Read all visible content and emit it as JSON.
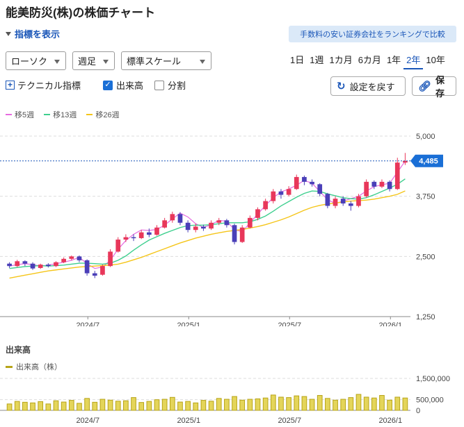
{
  "header": {
    "title": "能美防災(株)の株価チャート"
  },
  "indicator_toggle": {
    "label": "指標を表示"
  },
  "promo": {
    "label": "手数料の安い証券会社をランキングで比較"
  },
  "controls": {
    "chart_type": "ローソク",
    "interval": "週足",
    "scale": "標準スケール",
    "periods": [
      "1日",
      "1週",
      "1カ月",
      "6カ月",
      "1年",
      "2年",
      "10年"
    ],
    "active_period": "2年",
    "technical_label": "テクニカル指標",
    "volume_label": "出来高",
    "volume_checked": true,
    "split_label": "分割",
    "split_checked": false,
    "reset_label": "設定を戻す",
    "save_label": "保存"
  },
  "legend": {
    "ma5": "移5週",
    "ma13": "移13週",
    "ma26": "移26週"
  },
  "colors": {
    "up": "#e8375a",
    "down": "#4a3fb8",
    "ma5": "#e66be0",
    "ma13": "#3ecf8e",
    "ma26": "#f5c518",
    "volume": "#b7a418",
    "accent": "#1a56b8"
  },
  "volume_section": {
    "title": "出来高",
    "legend": "出来高（株）"
  },
  "chart_data": [
    {
      "type": "candlestick",
      "x_ticks": [
        "2024/7",
        "2025/1",
        "2025/7",
        "2026/1"
      ],
      "y_ticks": [
        "5,000",
        "3,750",
        "2,500",
        "1,250"
      ],
      "ylim": [
        1250,
        5000
      ],
      "current_price": 4485,
      "current_price_label": "4,485",
      "series": [
        {
          "name": "移5週",
          "values": [
            2300,
            2330,
            2350,
            2330,
            2300,
            2320,
            2350,
            2380,
            2420,
            2480,
            2350,
            2250,
            2280,
            2420,
            2650,
            2830,
            2960,
            3050,
            3040,
            3060,
            3150,
            3280,
            3400,
            3320,
            3180,
            3100,
            3160,
            3250,
            3230,
            3060,
            3010,
            3200,
            3380,
            3560,
            3720,
            3840,
            3900,
            3980,
            4080,
            4020,
            3850,
            3680,
            3600,
            3650,
            3700,
            3750,
            3860,
            3950,
            3990,
            4020,
            4250,
            4480
          ]
        },
        {
          "name": "移13週",
          "values": [
            2250,
            2270,
            2290,
            2300,
            2310,
            2300,
            2310,
            2320,
            2340,
            2360,
            2360,
            2350,
            2340,
            2360,
            2420,
            2510,
            2630,
            2740,
            2840,
            2910,
            2980,
            3040,
            3100,
            3140,
            3150,
            3150,
            3160,
            3180,
            3200,
            3200,
            3200,
            3220,
            3270,
            3340,
            3440,
            3550,
            3640,
            3730,
            3810,
            3860,
            3850,
            3800,
            3760,
            3720,
            3700,
            3690,
            3720,
            3780,
            3850,
            3920,
            4000,
            4110
          ]
        },
        {
          "name": "移26週",
          "values": [
            2050,
            2080,
            2110,
            2140,
            2170,
            2200,
            2220,
            2240,
            2260,
            2280,
            2290,
            2300,
            2310,
            2320,
            2340,
            2380,
            2430,
            2480,
            2540,
            2600,
            2660,
            2720,
            2780,
            2830,
            2880,
            2920,
            2960,
            2990,
            3020,
            3040,
            3060,
            3090,
            3120,
            3160,
            3210,
            3260,
            3320,
            3390,
            3460,
            3520,
            3560,
            3590,
            3610,
            3630,
            3650,
            3660,
            3670,
            3690,
            3720,
            3750,
            3790,
            3860
          ]
        }
      ],
      "candles": [
        {
          "o": 2350,
          "c": 2300,
          "h": 2380,
          "l": 2260
        },
        {
          "o": 2300,
          "c": 2400,
          "h": 2430,
          "l": 2280
        },
        {
          "o": 2400,
          "c": 2350,
          "h": 2420,
          "l": 2300
        },
        {
          "o": 2350,
          "c": 2250,
          "h": 2380,
          "l": 2220
        },
        {
          "o": 2260,
          "c": 2330,
          "h": 2350,
          "l": 2240
        },
        {
          "o": 2330,
          "c": 2300,
          "h": 2360,
          "l": 2270
        },
        {
          "o": 2300,
          "c": 2380,
          "h": 2400,
          "l": 2280
        },
        {
          "o": 2380,
          "c": 2450,
          "h": 2480,
          "l": 2360
        },
        {
          "o": 2450,
          "c": 2500,
          "h": 2520,
          "l": 2420
        },
        {
          "o": 2500,
          "c": 2420,
          "h": 2520,
          "l": 2380
        },
        {
          "o": 2420,
          "c": 2150,
          "h": 2440,
          "l": 2100
        },
        {
          "o": 2150,
          "c": 2100,
          "h": 2200,
          "l": 2050
        },
        {
          "o": 2120,
          "c": 2300,
          "h": 2330,
          "l": 2100
        },
        {
          "o": 2300,
          "c": 2600,
          "h": 2650,
          "l": 2280
        },
        {
          "o": 2600,
          "c": 2850,
          "h": 2900,
          "l": 2580
        },
        {
          "o": 2850,
          "c": 2900,
          "h": 2960,
          "l": 2800
        },
        {
          "o": 2900,
          "c": 2880,
          "h": 2960,
          "l": 2820
        },
        {
          "o": 2880,
          "c": 3000,
          "h": 3050,
          "l": 2860
        },
        {
          "o": 3000,
          "c": 2950,
          "h": 3080,
          "l": 2900
        },
        {
          "o": 2950,
          "c": 3100,
          "h": 3150,
          "l": 2930
        },
        {
          "o": 3100,
          "c": 3250,
          "h": 3300,
          "l": 3080
        },
        {
          "o": 3250,
          "c": 3380,
          "h": 3430,
          "l": 3200
        },
        {
          "o": 3380,
          "c": 3200,
          "h": 3420,
          "l": 3150
        },
        {
          "o": 3200,
          "c": 3050,
          "h": 3250,
          "l": 3000
        },
        {
          "o": 3050,
          "c": 3120,
          "h": 3180,
          "l": 3000
        },
        {
          "o": 3120,
          "c": 3080,
          "h": 3160,
          "l": 3030
        },
        {
          "o": 3080,
          "c": 3200,
          "h": 3250,
          "l": 3050
        },
        {
          "o": 3200,
          "c": 3250,
          "h": 3300,
          "l": 3150
        },
        {
          "o": 3250,
          "c": 3150,
          "h": 3280,
          "l": 3100
        },
        {
          "o": 3150,
          "c": 2800,
          "h": 3180,
          "l": 2750
        },
        {
          "o": 2800,
          "c": 3100,
          "h": 3150,
          "l": 2780
        },
        {
          "o": 3100,
          "c": 3300,
          "h": 3350,
          "l": 3080
        },
        {
          "o": 3300,
          "c": 3480,
          "h": 3520,
          "l": 3250
        },
        {
          "o": 3480,
          "c": 3650,
          "h": 3700,
          "l": 3450
        },
        {
          "o": 3650,
          "c": 3850,
          "h": 3900,
          "l": 3600
        },
        {
          "o": 3850,
          "c": 3780,
          "h": 3900,
          "l": 3700
        },
        {
          "o": 3780,
          "c": 3900,
          "h": 3960,
          "l": 3750
        },
        {
          "o": 3900,
          "c": 4150,
          "h": 4200,
          "l": 3880
        },
        {
          "o": 4150,
          "c": 4050,
          "h": 4180,
          "l": 3980
        },
        {
          "o": 4050,
          "c": 4000,
          "h": 4100,
          "l": 3950
        },
        {
          "o": 4000,
          "c": 3800,
          "h": 4020,
          "l": 3750
        },
        {
          "o": 3800,
          "c": 3550,
          "h": 3820,
          "l": 3500
        },
        {
          "o": 3550,
          "c": 3700,
          "h": 3750,
          "l": 3500
        },
        {
          "o": 3700,
          "c": 3600,
          "h": 3750,
          "l": 3550
        },
        {
          "o": 3600,
          "c": 3550,
          "h": 3650,
          "l": 3450
        },
        {
          "o": 3550,
          "c": 3750,
          "h": 3800,
          "l": 3520
        },
        {
          "o": 3750,
          "c": 4050,
          "h": 4100,
          "l": 3720
        },
        {
          "o": 4050,
          "c": 3950,
          "h": 4080,
          "l": 3900
        },
        {
          "o": 3950,
          "c": 4050,
          "h": 4100,
          "l": 3920
        },
        {
          "o": 4050,
          "c": 3900,
          "h": 4080,
          "l": 3850
        },
        {
          "o": 3900,
          "c": 4450,
          "h": 4550,
          "l": 3880
        },
        {
          "o": 4450,
          "c": 4485,
          "h": 4650,
          "l": 4400
        }
      ]
    },
    {
      "type": "bar",
      "x_ticks": [
        "2024/7",
        "2025/1",
        "2025/7",
        "2026/1"
      ],
      "y_ticks": [
        "1,500,000",
        "500,000",
        "0"
      ],
      "ylim": [
        0,
        1500000
      ],
      "values": [
        300000,
        420000,
        380000,
        350000,
        410000,
        300000,
        450000,
        390000,
        470000,
        330000,
        560000,
        380000,
        520000,
        480000,
        430000,
        450000,
        600000,
        370000,
        420000,
        500000,
        520000,
        610000,
        390000,
        420000,
        350000,
        470000,
        430000,
        560000,
        520000,
        650000,
        480000,
        520000,
        540000,
        580000,
        720000,
        620000,
        600000,
        680000,
        650000,
        520000,
        700000,
        560000,
        480000,
        520000,
        600000,
        750000,
        620000,
        580000,
        700000,
        480000,
        620000,
        580000
      ]
    }
  ]
}
